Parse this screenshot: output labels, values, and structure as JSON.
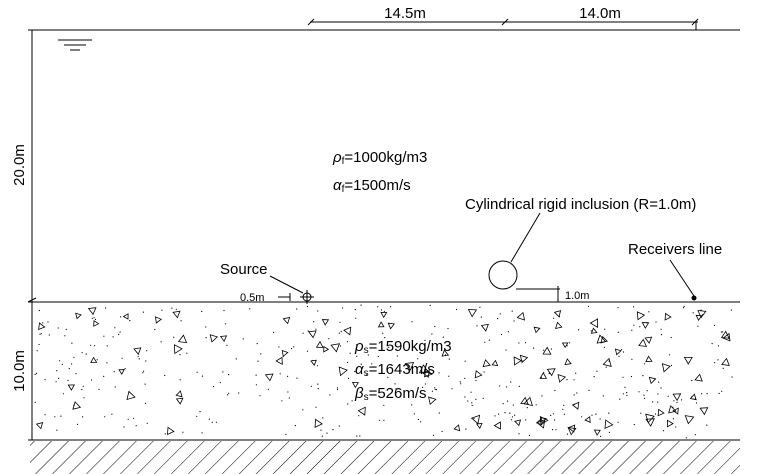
{
  "dimensions": {
    "top_left": "14.5m",
    "top_right": "14.0m",
    "water_depth": "20.0m",
    "soil_depth": "10.0m",
    "source_offset": "0.5m",
    "inclusion_offset": "1.0m"
  },
  "fluid": {
    "density": {
      "symbol": "ρ",
      "subscript": "f",
      "text": "=1000kg/m3"
    },
    "p_velocity": {
      "symbol": "α",
      "subscript": "f",
      "text": "=1500m/s"
    }
  },
  "soil": {
    "density": {
      "symbol": "ρ",
      "subscript": "s",
      "text": "=1590kg/m3"
    },
    "p_velocity": {
      "symbol": "α",
      "subscript": "s",
      "text": "=1643m/s"
    },
    "s_velocity": {
      "symbol": "β",
      "subscript": "s",
      "text": "=526m/s"
    }
  },
  "labels": {
    "inclusion": "Cylindrical rigid inclusion (R=1.0m)",
    "receivers": "Receivers line",
    "source": "Source"
  }
}
